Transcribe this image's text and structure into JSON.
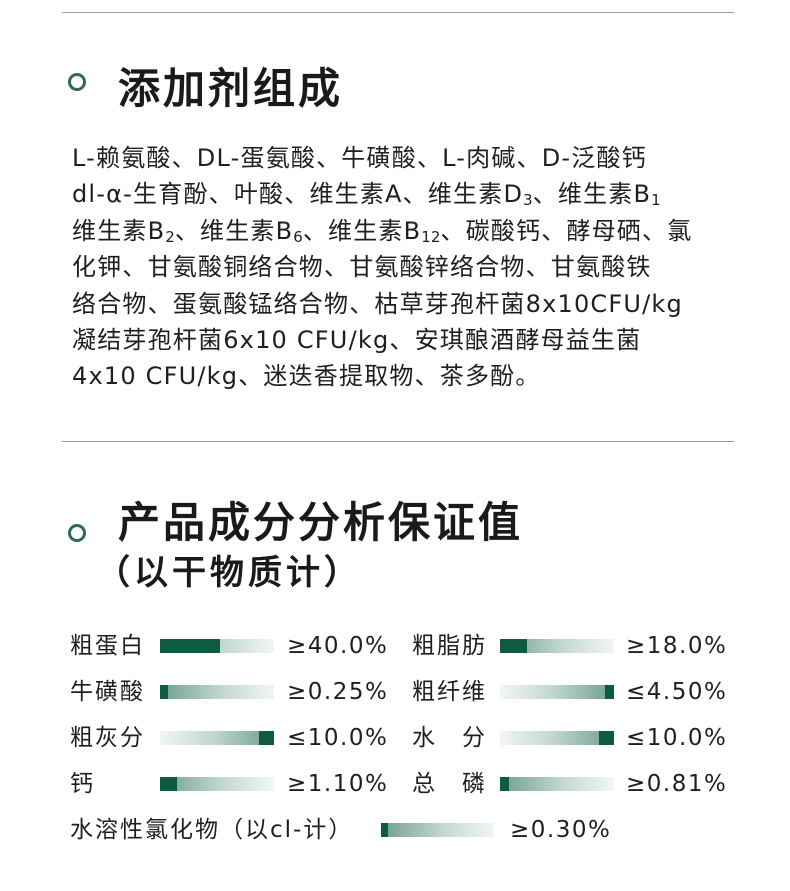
{
  "section1": {
    "title": "添加剂组成",
    "lines": [
      [
        "L-赖氨酸、DL-蛋氨酸、牛磺酸、L-肉碱、D-泛酸钙"
      ],
      [
        "dl-α-生育酚、叶酸、维生素A、维生素D",
        {
          "sub": "3"
        },
        "、维生素B",
        {
          "sub": "1"
        }
      ],
      [
        "维生素B",
        {
          "sub": "2"
        },
        "、维生素B",
        {
          "sub": "6"
        },
        "、维生素B",
        {
          "sub": "12"
        },
        "、碳酸钙、酵母硒、氯"
      ],
      [
        "化钾、甘氨酸铜络合物、甘氨酸锌络合物、甘氨酸铁"
      ],
      [
        "络合物、蛋氨酸锰络合物、枯草芽孢杆菌8x10CFU/kg"
      ],
      [
        "凝结芽孢杆菌6x10 CFU/kg、安琪酿酒酵母益生菌"
      ],
      [
        "4x10 CFU/kg、迷迭香提取物、茶多酚。"
      ]
    ]
  },
  "section2": {
    "title": "产品成分分析保证值",
    "subtitle": "（以干物质计）"
  },
  "nutrients": [
    {
      "label": "粗蛋白",
      "value": "≥40.0%",
      "fill_start": 0.0,
      "fill_end": 0.53,
      "direction": "min"
    },
    {
      "label": "粗脂肪",
      "value": "≥18.0%",
      "fill_start": 0.0,
      "fill_end": 0.24,
      "direction": "min"
    },
    {
      "label": "牛磺酸",
      "value": "≥0.25%",
      "fill_start": 0.0,
      "fill_end": 0.07,
      "direction": "min"
    },
    {
      "label": "粗纤维",
      "value": "≤4.50%",
      "fill_start": 0.92,
      "fill_end": 1.0,
      "direction": "max"
    },
    {
      "label": "粗灰分",
      "value": "≤10.0%",
      "fill_start": 0.87,
      "fill_end": 1.0,
      "direction": "max"
    },
    {
      "label": "水　分",
      "value": "≤10.0%",
      "fill_start": 0.87,
      "fill_end": 1.0,
      "direction": "max"
    },
    {
      "label": "钙",
      "value": "≥1.10%",
      "fill_start": 0.0,
      "fill_end": 0.15,
      "direction": "min"
    },
    {
      "label": "总　磷",
      "value": "≥0.81%",
      "fill_start": 0.0,
      "fill_end": 0.08,
      "direction": "min"
    },
    {
      "label": "水溶性氯化物（以cl-计）",
      "value": "≥0.30%",
      "fill_start": 0.0,
      "fill_end": 0.06,
      "direction": "min"
    }
  ],
  "colors": {
    "accent": "#0f5a42",
    "icon": "#2f6a53",
    "divider": "#9a9a9a"
  }
}
